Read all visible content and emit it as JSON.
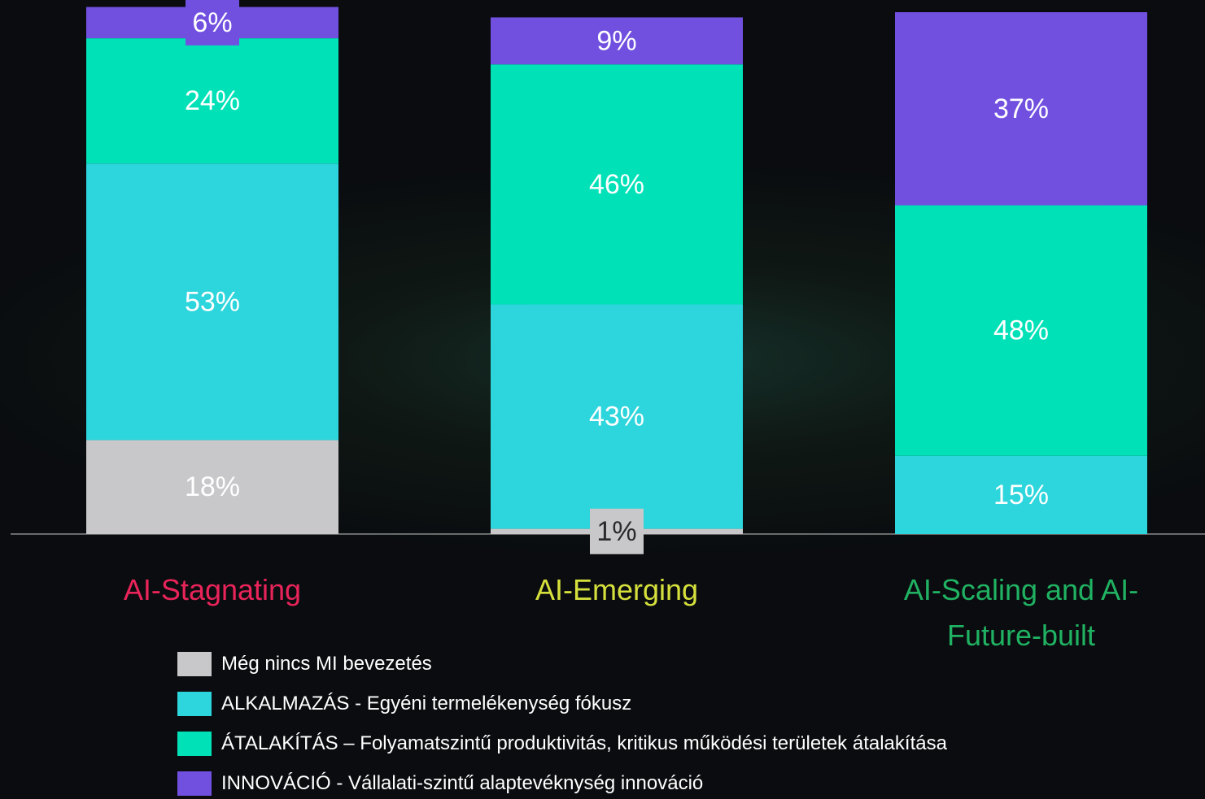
{
  "chart_data": {
    "type": "stacked_bar",
    "categories": [
      "AI-Stagnating",
      "AI-Emerging",
      "AI-Scaling and AI-Future-built"
    ],
    "category_colors": [
      "#e8245a",
      "#d6e03c",
      "#20b262"
    ],
    "series": [
      {
        "name": "Még nincs MI bevezetés",
        "color": "#c8c8ca",
        "values": [
          18,
          1,
          null
        ],
        "value_labels": [
          "18%",
          "1%",
          null
        ]
      },
      {
        "name": "ALKALMAZÁS - Egyéni termelékenység fókusz",
        "color": "#2dd5dc",
        "values": [
          53,
          43,
          15
        ],
        "value_labels": [
          "53%",
          "43%",
          "15%"
        ]
      },
      {
        "name": "ÁTALAKÍTÁS – Folyamatszintű produktivitás, kritikus működési területek átalakítása",
        "color": "#00e1b8",
        "values": [
          24,
          46,
          48
        ],
        "value_labels": [
          "24%",
          "46%",
          "48%"
        ]
      },
      {
        "name": "INNOVÁCIÓ - Vállalati-szintű alaptevékny­ség innováció",
        "color": "#7150e0",
        "values": [
          6,
          9,
          37
        ],
        "value_labels": [
          "6%",
          "9%",
          "37%"
        ]
      }
    ],
    "ylim": [
      0,
      100
    ]
  }
}
